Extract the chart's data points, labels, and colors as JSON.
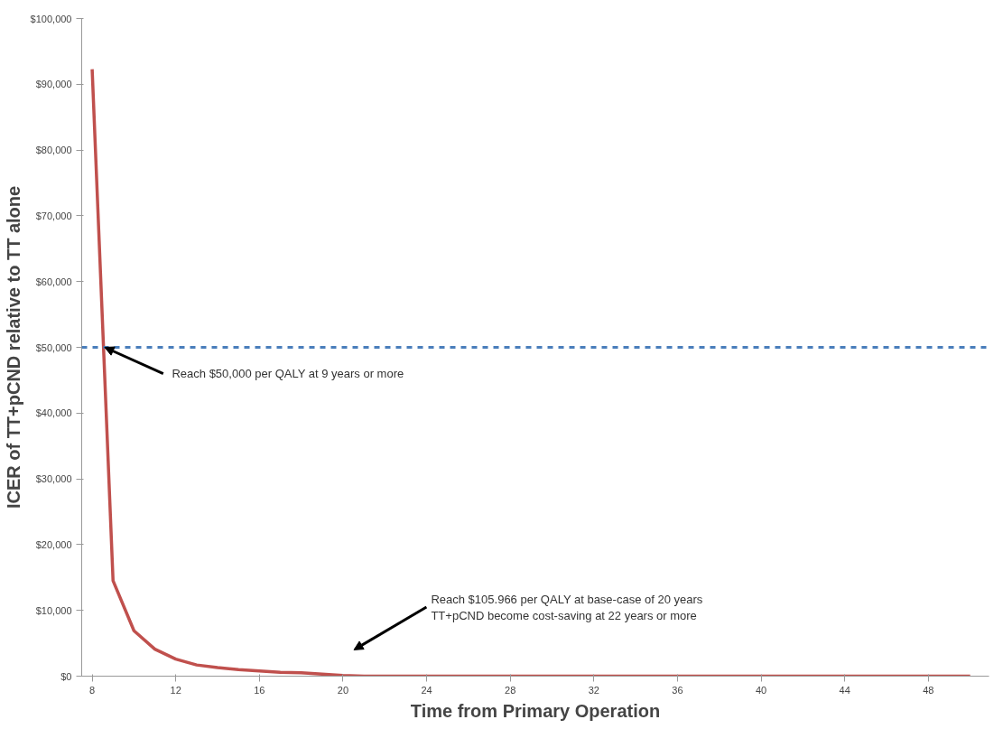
{
  "chart_data": {
    "type": "line",
    "xlabel": "Time from Primary Operation",
    "ylabel": "ICER of TT+pCND relative to TT alone",
    "x": [
      8,
      9,
      10,
      11,
      12,
      13,
      14,
      15,
      16,
      17,
      18,
      19,
      20,
      21,
      22,
      23,
      24,
      25,
      26,
      27,
      28,
      29,
      30,
      31,
      32,
      33,
      34,
      35,
      36,
      37,
      38,
      39,
      40,
      41,
      42,
      43,
      44,
      45,
      46,
      47,
      48,
      49,
      50
    ],
    "series": [
      {
        "color": "#c0504d",
        "values": [
          92300,
          14500,
          6900,
          4100,
          2600,
          1700,
          1300,
          1000,
          800,
          600,
          500,
          300,
          100,
          0,
          0,
          0,
          0,
          0,
          0,
          0,
          0,
          0,
          0,
          0,
          0,
          0,
          0,
          0,
          0,
          0,
          0,
          0,
          0,
          0,
          0,
          0,
          0,
          0,
          0,
          0,
          0,
          0,
          0
        ]
      }
    ],
    "xlim": [
      7.5,
      50.9
    ],
    "xticks": [
      8,
      12,
      16,
      20,
      24,
      28,
      32,
      36,
      40,
      44,
      48
    ],
    "ylim": [
      0,
      100000
    ],
    "yticks": [
      {
        "value": 0,
        "label": "$0"
      },
      {
        "value": 10000,
        "label": "$10,000"
      },
      {
        "value": 20000,
        "label": "$20,000"
      },
      {
        "value": 30000,
        "label": "$30,000"
      },
      {
        "value": 40000,
        "label": "$40,000"
      },
      {
        "value": 50000,
        "label": "$50,000"
      },
      {
        "value": 60000,
        "label": "$60,000"
      },
      {
        "value": 70000,
        "label": "$70,000"
      },
      {
        "value": 80000,
        "label": "$80,000"
      },
      {
        "value": 90000,
        "label": "$90,000"
      },
      {
        "value": 100000,
        "label": "$100,000"
      }
    ],
    "ref_lines": [
      {
        "axis": "y",
        "value": 50000,
        "color": "#4a7ebb",
        "line_style": "dashed"
      }
    ],
    "annotations": [
      {
        "text": "Reach $50,000 per QALY at 9 years or more",
        "x": 8.6,
        "y": 50000
      },
      "Reach $105.966 per QALY at base-case of 20 years\nTT+pCND become cost-saving at 22 years or more"
    ],
    "grid": false,
    "marker": "none",
    "line_style": "solid"
  }
}
